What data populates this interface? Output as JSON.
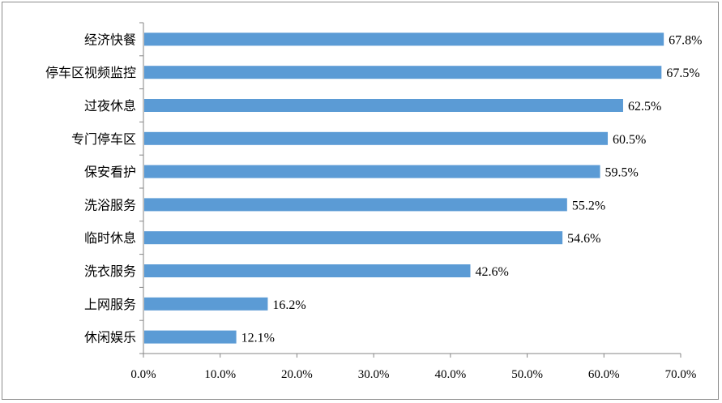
{
  "chart_data": {
    "type": "bar",
    "orientation": "horizontal",
    "categories": [
      "经济快餐",
      "停车区视频监控",
      "过夜休息",
      "专门停车区",
      "保安看护",
      "洗浴服务",
      "临时休息",
      "洗衣服务",
      "上网服务",
      "休闲娱乐"
    ],
    "values": [
      67.8,
      67.5,
      62.5,
      60.5,
      59.5,
      55.2,
      54.6,
      42.6,
      16.2,
      12.1
    ],
    "value_labels": [
      "67.8%",
      "67.5%",
      "62.5%",
      "60.5%",
      "59.5%",
      "55.2%",
      "54.6%",
      "42.6%",
      "16.2%",
      "12.1%"
    ],
    "xlim": [
      0,
      70
    ],
    "x_ticks": [
      0,
      10,
      20,
      30,
      40,
      50,
      60,
      70
    ],
    "x_tick_labels": [
      "0.0%",
      "10.0%",
      "20.0%",
      "30.0%",
      "40.0%",
      "50.0%",
      "60.0%",
      "70.0%"
    ],
    "title": "",
    "xlabel": "",
    "ylabel": "",
    "grid": false,
    "legend": "none",
    "bar_color": "#5b9bd5"
  }
}
